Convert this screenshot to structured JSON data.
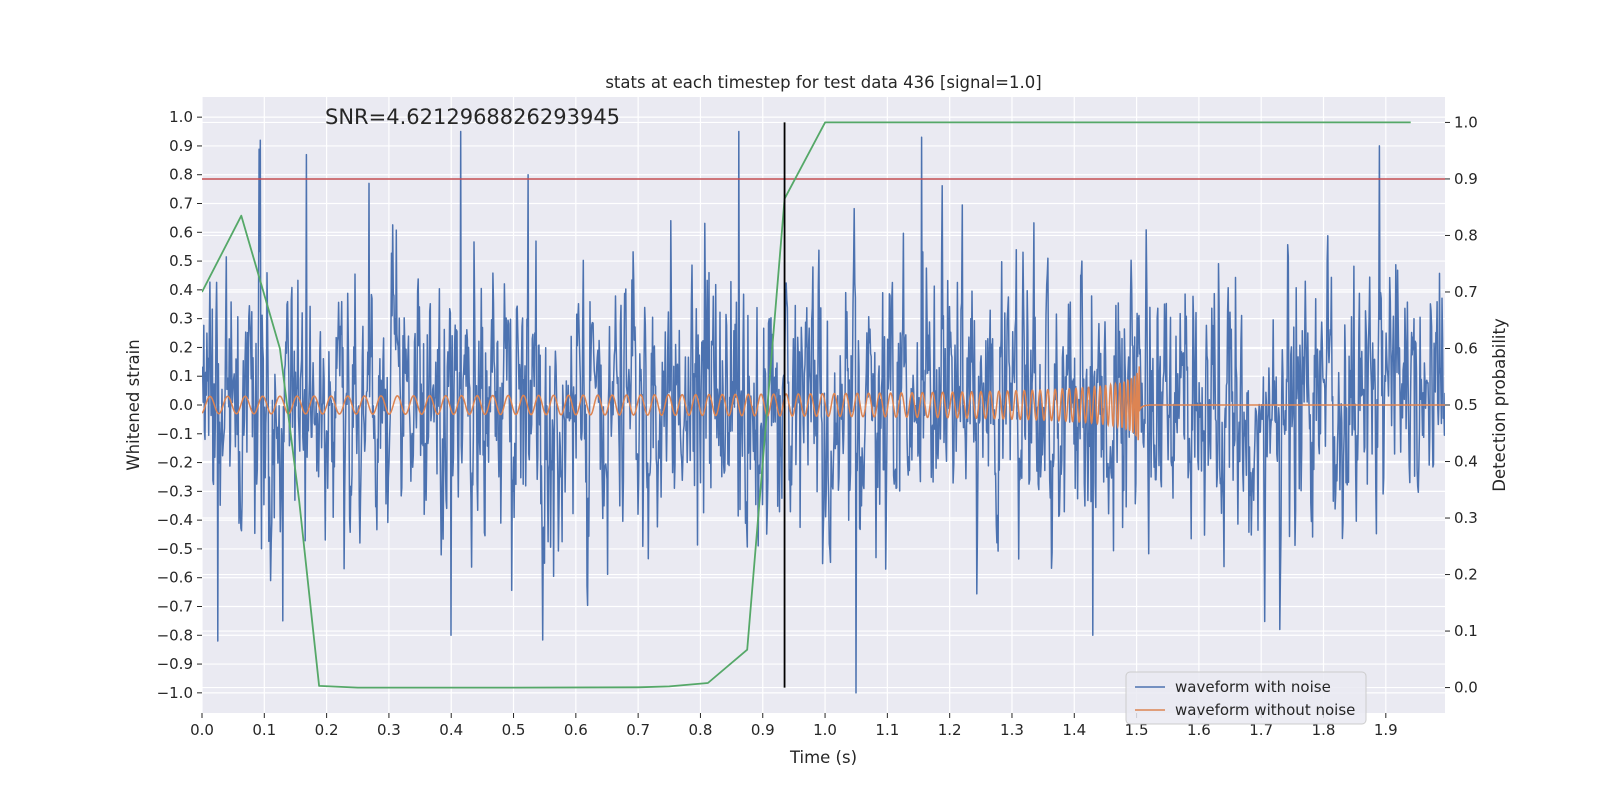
{
  "chart_data": {
    "type": "line",
    "title": "stats at each timestep for test data 436 [signal=1.0]",
    "annotation": "SNR=4.6212968826293945",
    "xlabel": "Time (s)",
    "ylabel_left": "Whitened strain",
    "ylabel_right": "Detection probability",
    "xlim": [
      0.0,
      1.995
    ],
    "ylim_left": [
      -1.07,
      1.07
    ],
    "ylim_right": [
      -0.045,
      1.045
    ],
    "xticks": [
      "0.0",
      "0.1",
      "0.2",
      "0.3",
      "0.4",
      "0.5",
      "0.6",
      "0.7",
      "0.8",
      "0.9",
      "1.0",
      "1.1",
      "1.2",
      "1.3",
      "1.4",
      "1.5",
      "1.6",
      "1.7",
      "1.8",
      "1.9"
    ],
    "yticks_left": [
      "−1.0",
      "−0.9",
      "−0.8",
      "−0.7",
      "−0.6",
      "−0.5",
      "−0.4",
      "−0.3",
      "−0.2",
      "−0.1",
      "0.0",
      "0.1",
      "0.2",
      "0.3",
      "0.4",
      "0.5",
      "0.6",
      "0.7",
      "0.8",
      "0.9",
      "1.0"
    ],
    "yticks_right": [
      "0.0",
      "0.1",
      "0.2",
      "0.3",
      "0.4",
      "0.5",
      "0.6",
      "0.7",
      "0.8",
      "0.9",
      "1.0"
    ],
    "threshold": 0.9,
    "detection_time": 0.935,
    "noisy_waveform": {
      "name": "waveform with noise",
      "color": "#4c72b0",
      "samples": 2048,
      "t_start": 0.0,
      "t_end": 1.995,
      "approx_std": 0.27,
      "peaks": [
        [
          0.094,
          0.92
        ],
        [
          0.168,
          0.87
        ],
        [
          0.268,
          0.77
        ],
        [
          0.415,
          0.95
        ],
        [
          0.523,
          0.8
        ],
        [
          0.862,
          0.95
        ],
        [
          1.155,
          0.93
        ],
        [
          1.89,
          0.9
        ],
        [
          0.025,
          -0.82
        ],
        [
          0.13,
          -0.75
        ],
        [
          0.4,
          -0.8
        ],
        [
          1.05,
          -1.0
        ],
        [
          1.43,
          -0.8
        ],
        [
          1.73,
          -0.78
        ]
      ]
    },
    "clean_waveform": {
      "name": "waveform without noise",
      "color": "#dd8452",
      "t_merger": 1.505,
      "amplitude_start": 0.03,
      "amplitude_peak": 0.17,
      "freq_start_hz": 35,
      "ringdown_until": 1.52
    },
    "probability": {
      "name": "Detection probability",
      "color": "#55a868",
      "x": [
        0.0,
        0.063,
        0.125,
        0.156,
        0.188,
        0.25,
        0.5,
        0.7,
        0.75,
        0.812,
        0.875,
        0.935,
        1.0,
        1.94
      ],
      "y": [
        0.7,
        0.835,
        0.6,
        0.33,
        0.003,
        0.0,
        0.0,
        0.0005,
        0.002,
        0.008,
        0.067,
        0.865,
        1.0,
        1.0
      ]
    },
    "threshold_color": "#c44e52",
    "marker_color": "#000000",
    "legend": {
      "position": "lower-right",
      "entries": [
        "waveform with noise",
        "waveform without noise"
      ]
    }
  }
}
